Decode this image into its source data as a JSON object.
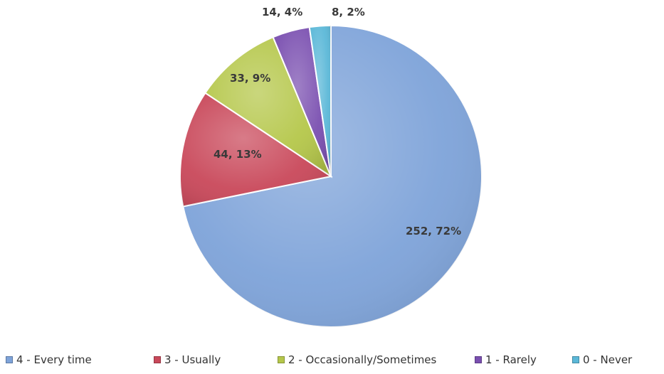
{
  "chart_data": {
    "type": "pie",
    "title": "",
    "slices": [
      {
        "name": "4 - Every time",
        "value": 252,
        "percent": "72%",
        "label": "252, 72%",
        "color": "#7ea3d9"
      },
      {
        "name": "3 - Usually",
        "value": 44,
        "percent": "13%",
        "label": "44, 13%",
        "color": "#c9485a"
      },
      {
        "name": "2 - Occasionally/Sometimes",
        "value": 33,
        "percent": "9%",
        "label": "33, 9%",
        "color": "#b5c74a"
      },
      {
        "name": "1 - Rarely",
        "value": 14,
        "percent": "4%",
        "label": "14, 4%",
        "color": "#7a4fb0"
      },
      {
        "name": "0 - Never",
        "value": 8,
        "percent": "2%",
        "label": "8, 2%",
        "color": "#5bb8d8"
      }
    ],
    "legend_position": "bottom"
  }
}
